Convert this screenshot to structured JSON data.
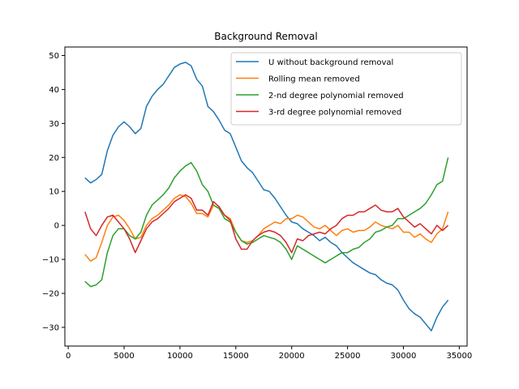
{
  "chart_data": {
    "type": "line",
    "title": "Background Removal",
    "xlabel": "",
    "ylabel": "",
    "xlim": [
      -300,
      35700
    ],
    "ylim": [
      -35.5,
      52.5
    ],
    "xticks": [
      0,
      5000,
      10000,
      15000,
      20000,
      25000,
      30000,
      35000
    ],
    "yticks": [
      -30,
      -20,
      -10,
      0,
      10,
      20,
      30,
      40,
      50
    ],
    "grid": false,
    "legend_position": "top-right",
    "x": [
      1500,
      2000,
      2500,
      3000,
      3500,
      4000,
      4500,
      5000,
      5500,
      6000,
      6500,
      7000,
      7500,
      8000,
      8500,
      9000,
      9500,
      10000,
      10500,
      11000,
      11500,
      12000,
      12500,
      13000,
      13500,
      14000,
      14500,
      15000,
      15500,
      16000,
      16500,
      17000,
      17500,
      18000,
      18500,
      19000,
      19500,
      20000,
      20500,
      21000,
      21500,
      22000,
      22500,
      23000,
      23500,
      24000,
      24500,
      25000,
      25500,
      26000,
      26500,
      27000,
      27500,
      28000,
      28500,
      29000,
      29500,
      30000,
      30500,
      31000,
      31500,
      32000,
      32500,
      33000,
      33500,
      34000
    ],
    "series": [
      {
        "name": "U without background removal",
        "color": "#1f77b4",
        "values": [
          14,
          12.5,
          13.5,
          15,
          22,
          26.5,
          29,
          30.5,
          29,
          27,
          28.5,
          35,
          38,
          40,
          41.5,
          44,
          46.5,
          47.5,
          48,
          47,
          43,
          41,
          35,
          33.5,
          31,
          28,
          27,
          23,
          19,
          17,
          15.5,
          13,
          10.5,
          10,
          8,
          5.5,
          3,
          1,
          0.5,
          -1,
          -2,
          -3,
          -4.5,
          -3.5,
          -5,
          -6,
          -8,
          -9.5,
          -11,
          -12,
          -13,
          -14,
          -14.5,
          -16,
          -17,
          -17.5,
          -19,
          -22,
          -24.5,
          -26,
          -27,
          -29,
          -31,
          -27,
          -24,
          -22
        ]
      },
      {
        "name": "Rolling mean removed",
        "color": "#ff7f0e",
        "values": [
          -8.5,
          -10.5,
          -9.5,
          -5,
          0,
          2.5,
          3,
          1.5,
          -1,
          -4,
          -3.5,
          0,
          2,
          3,
          4.5,
          6,
          8,
          9,
          8.5,
          6.5,
          3.5,
          3.5,
          2.5,
          6,
          5,
          3,
          2,
          -2,
          -4.5,
          -5,
          -4.5,
          -3,
          -1,
          0,
          1,
          0.5,
          2,
          2,
          3,
          2.5,
          1,
          -0.5,
          -1,
          0,
          -1.5,
          -3,
          -1.5,
          -1,
          -2,
          -1.5,
          -1.5,
          -0.5,
          1,
          0,
          -0.5,
          -1,
          0,
          -2,
          -2,
          -3.5,
          -2.5,
          -4,
          -5,
          -2.5,
          -1,
          4
        ]
      },
      {
        "name": "2-nd degree polynomial removed",
        "color": "#2ca02c",
        "values": [
          -16.5,
          -18,
          -17.5,
          -16,
          -8,
          -3,
          -1,
          -1,
          -3,
          -4,
          -2,
          3,
          6,
          7.5,
          9,
          11,
          14,
          16,
          17.5,
          18.5,
          16,
          12,
          10,
          6,
          5,
          2,
          1,
          -2,
          -4.5,
          -5.5,
          -5,
          -4,
          -3,
          -3.5,
          -4,
          -5,
          -7,
          -10,
          -6,
          -7,
          -8,
          -9,
          -10,
          -11,
          -10,
          -9,
          -8,
          -8,
          -7,
          -6.5,
          -5,
          -4,
          -2,
          -1.5,
          -0.5,
          0,
          2,
          2,
          3,
          4,
          5,
          6.5,
          9,
          12,
          13,
          20
        ]
      },
      {
        "name": "3-rd degree polynomial removed",
        "color": "#d62728",
        "values": [
          4,
          -1,
          -3,
          0,
          2.5,
          3,
          1,
          -1,
          -4,
          -8,
          -4.5,
          -1,
          1,
          2,
          3.5,
          5,
          7,
          8,
          9,
          8,
          4.5,
          4.5,
          3,
          7,
          5.5,
          3,
          1.5,
          -4,
          -7,
          -7,
          -4.5,
          -3,
          -2,
          -1.5,
          -2,
          -3,
          -5,
          -8,
          -4,
          -4.5,
          -3,
          -2.5,
          -2,
          -2.5,
          -1,
          0,
          2,
          3,
          3,
          4,
          4,
          5,
          6,
          4.5,
          4,
          4,
          5,
          2.5,
          1,
          -0.5,
          0.5,
          -1,
          -2.5,
          0,
          -1.5,
          0
        ]
      }
    ]
  }
}
